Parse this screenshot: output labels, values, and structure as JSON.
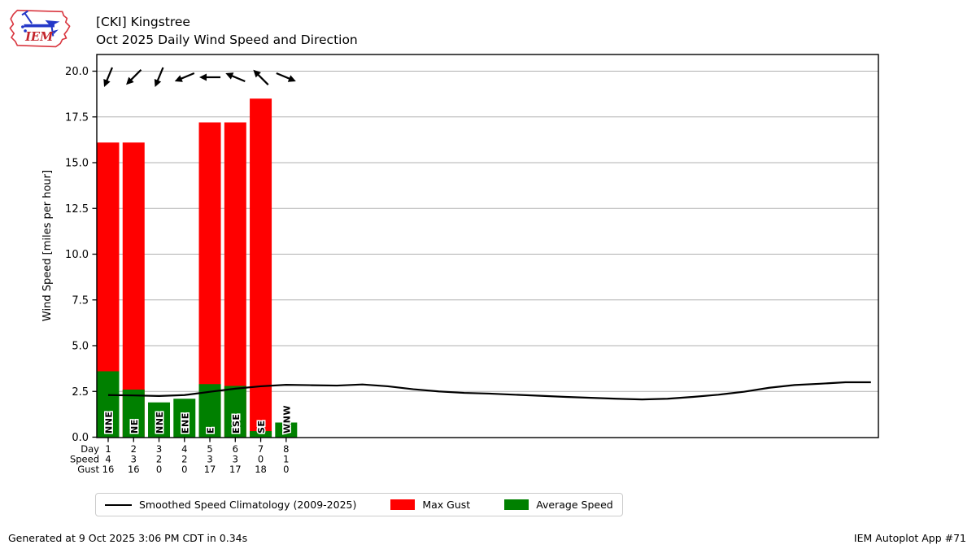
{
  "header": {
    "title_line1": "[CKI] Kingstree",
    "title_line2": "Oct 2025 Daily Wind Speed and Direction",
    "logo_text": "IEM"
  },
  "footer": {
    "left": "Generated at 9 Oct 2025 3:06 PM CDT in 0.34s",
    "right": "IEM Autoplot App #71"
  },
  "legend": {
    "climatology_label": "Smoothed Speed Climatology (2009-2025)",
    "max_gust_label": "Max Gust",
    "avg_speed_label": "Average Speed"
  },
  "colors": {
    "max_gust": "#ff0000",
    "avg_speed": "#008000",
    "climatology_line": "#000000",
    "grid": "#b0b0b0",
    "axis": "#000000",
    "logo_red": "#d9363f",
    "logo_text_red": "#c3242b",
    "logo_blue": "#2438c8"
  },
  "chart_data": {
    "type": "bar",
    "title": "Oct 2025 Daily Wind Speed and Direction",
    "station": "[CKI] Kingstree",
    "ylabel": "Wind Speed [miles per hour]",
    "ylim": [
      0,
      20.9
    ],
    "yticks": [
      0.0,
      2.5,
      5.0,
      7.5,
      10.0,
      12.5,
      15.0,
      17.5,
      20.0
    ],
    "ytick_labels": [
      "0.0",
      "2.5",
      "5.0",
      "7.5",
      "10.0",
      "12.5",
      "15.0",
      "17.5",
      "20.0"
    ],
    "grid": true,
    "legend_position": "bottom",
    "days": [
      1,
      2,
      3,
      4,
      5,
      6,
      7,
      8
    ],
    "x_rows": {
      "labels": [
        "Day",
        "Speed",
        "Gust"
      ],
      "day": [
        "1",
        "2",
        "3",
        "4",
        "5",
        "6",
        "7",
        "8"
      ],
      "speed": [
        "4",
        "3",
        "2",
        "2",
        "3",
        "3",
        "0",
        "1"
      ],
      "gust": [
        "16",
        "16",
        "0",
        "0",
        "17",
        "17",
        "18",
        "0"
      ]
    },
    "series": [
      {
        "name": "Max Gust",
        "values": [
          16.1,
          16.1,
          0,
          0,
          17.2,
          17.2,
          18.5,
          0
        ]
      },
      {
        "name": "Average Speed",
        "values": [
          3.6,
          2.6,
          1.9,
          2.1,
          2.9,
          2.8,
          0.33,
          0.8
        ]
      }
    ],
    "directions": [
      "NNE",
      "NE",
      "NNE",
      "ENE",
      "E",
      "ESE",
      "SE",
      "WNW"
    ],
    "direction_degrees": [
      22.5,
      45,
      22.5,
      67.5,
      90,
      112.5,
      135,
      292.5
    ],
    "climatology": {
      "name": "Smoothed Speed Climatology (2009-2025)",
      "days": [
        1,
        2,
        3,
        4,
        5,
        6,
        7,
        8,
        9,
        10,
        11,
        12,
        13,
        14,
        15,
        16,
        17,
        18,
        19,
        20,
        21,
        22,
        23,
        24,
        25,
        26,
        27,
        28,
        29,
        30,
        31
      ],
      "values": [
        2.3,
        2.28,
        2.25,
        2.3,
        2.48,
        2.65,
        2.78,
        2.86,
        2.84,
        2.82,
        2.88,
        2.78,
        2.62,
        2.5,
        2.42,
        2.38,
        2.32,
        2.26,
        2.2,
        2.15,
        2.1,
        2.06,
        2.1,
        2.2,
        2.32,
        2.48,
        2.7,
        2.85,
        2.92,
        3.0,
        3.0
      ]
    }
  }
}
